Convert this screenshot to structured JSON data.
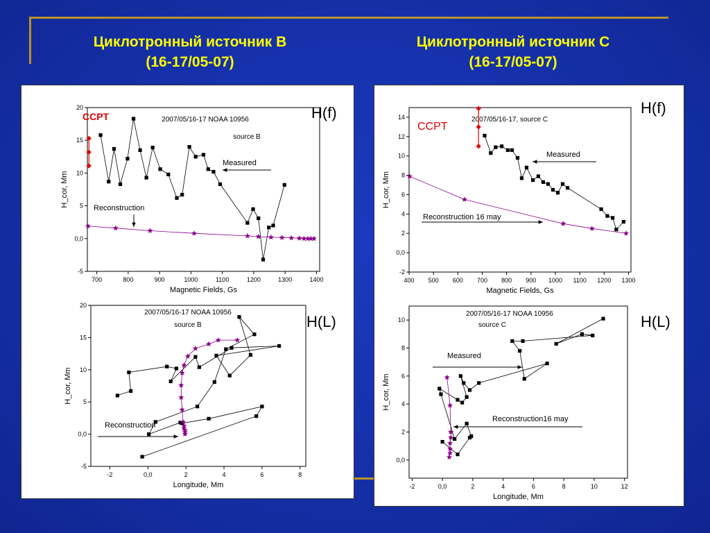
{
  "header": {
    "left_title_line1": "Циклотронный источник В",
    "left_title_line2": "(16-17/05-07)",
    "right_title_line1": "Циклотронный источник С",
    "right_title_line2": "(16-17/05-07)"
  },
  "colors": {
    "background": "#1530a8",
    "title": "#ffff00",
    "accent_line": "#b8922a",
    "measured": "#000000",
    "reconstruction": "#8b008b",
    "ccpt": "#e00000"
  },
  "chart_data": [
    {
      "id": "b_hf",
      "type": "line",
      "side_label": "H(f)",
      "title": "2007/05/16-17 NOAA 10956",
      "subtitle": "source B",
      "corner_label": "CCPT",
      "xlabel": "Magnetic Fields, Gs",
      "ylabel": "H_cor, Mm",
      "xlim": [
        670,
        1410
      ],
      "ylim": [
        -5,
        20
      ],
      "xticks": [
        700,
        800,
        900,
        1000,
        1100,
        1200,
        1300,
        1400
      ],
      "xtick_labels": [
        "700",
        "800",
        "900",
        "1000",
        "1100",
        "1200",
        "1300",
        "1400"
      ],
      "yticks": [
        -5,
        0,
        5,
        10,
        15,
        20
      ],
      "ytick_labels": [
        "-5",
        "0,0",
        "5",
        "10",
        "15",
        "20"
      ],
      "series": [
        {
          "name": "Measured",
          "marker": "square",
          "x": [
            712,
            738,
            755,
            775,
            798,
            817,
            838,
            858,
            878,
            902,
            928,
            955,
            972,
            995,
            1015,
            1040,
            1055,
            1072,
            1093,
            1180,
            1198,
            1215,
            1230,
            1248,
            1262,
            1298
          ],
          "y": [
            15.8,
            8.7,
            13.7,
            8.3,
            12.2,
            18.3,
            13.5,
            9.3,
            13.9,
            10.6,
            9.8,
            6.2,
            6.7,
            14.0,
            12.5,
            12.8,
            10.6,
            10.2,
            8.3,
            2.4,
            4.5,
            3.1,
            -3.2,
            1.7,
            2.0,
            8.2
          ]
        },
        {
          "name": "Reconstruction",
          "marker": "star",
          "x": [
            672,
            760,
            870,
            1010,
            1180,
            1215,
            1255,
            1290,
            1320,
            1345,
            1360,
            1372,
            1382,
            1392
          ],
          "y": [
            1.9,
            1.6,
            1.2,
            0.8,
            0.4,
            0.3,
            0.2,
            0.15,
            0.1,
            0.05,
            0.0,
            0.0,
            0.0,
            0.0
          ]
        },
        {
          "name": "CCPT",
          "marker": "diamond",
          "x": [
            675,
            675,
            675
          ],
          "y": [
            11.1,
            13.2,
            15.3
          ]
        }
      ],
      "annotations": [
        "Measured",
        "Reconstruction"
      ]
    },
    {
      "id": "c_hf",
      "type": "line",
      "side_label": "H(f)",
      "title": "2007/05/16-17, source C",
      "subtitle": "",
      "corner_label": "CCPT",
      "xlabel": "Magnetic Fields, Gs",
      "ylabel": "H_cor, Mm",
      "xlim": [
        400,
        1310
      ],
      "ylim": [
        -2,
        15
      ],
      "xticks": [
        400,
        500,
        600,
        700,
        800,
        900,
        1000,
        1100,
        1200,
        1300
      ],
      "xtick_labels": [
        "400",
        "500",
        "600",
        "700",
        "800",
        "900",
        "1000",
        "1100",
        "1200",
        "1300"
      ],
      "yticks": [
        -2,
        0,
        2,
        4,
        6,
        8,
        10,
        12,
        14
      ],
      "ytick_labels": [
        "-2",
        "0,0",
        "2",
        "4",
        "6",
        "8",
        "10",
        "12",
        "14"
      ],
      "series": [
        {
          "name": "Measured",
          "marker": "square",
          "x": [
            710,
            735,
            755,
            780,
            805,
            822,
            845,
            862,
            882,
            908,
            930,
            950,
            970,
            990,
            1010,
            1030,
            1050,
            1188,
            1213,
            1235,
            1250,
            1280
          ],
          "y": [
            12.1,
            10.3,
            10.9,
            11.0,
            10.6,
            10.6,
            9.8,
            7.7,
            8.8,
            7.5,
            7.9,
            7.3,
            7.1,
            6.5,
            6.2,
            7.1,
            6.7,
            4.5,
            3.8,
            3.6,
            2.4,
            3.2
          ]
        },
        {
          "name": "Reconstruction 16 may",
          "marker": "star",
          "x": [
            402,
            627,
            1032,
            1150,
            1290
          ],
          "y": [
            7.9,
            5.5,
            3.0,
            2.5,
            2.0
          ]
        },
        {
          "name": "CCPT",
          "marker": "diamond",
          "x": [
            685,
            685,
            685
          ],
          "y": [
            11.0,
            13.0,
            14.9
          ]
        }
      ],
      "annotations": [
        "Measured",
        "Reconstruction 16 may"
      ]
    },
    {
      "id": "b_hl",
      "type": "line",
      "side_label": "H(L)",
      "title": "2007/05/16-17 NOAA 10956",
      "subtitle": "source B",
      "xlabel": "Longitude, Mm",
      "ylabel": "H_cor, Mm",
      "xlim": [
        -3,
        8.3
      ],
      "ylim": [
        -5,
        20
      ],
      "xticks": [
        -2,
        0,
        2,
        4,
        6,
        8
      ],
      "xtick_labels": [
        "-2",
        "0,0",
        "2",
        "4",
        "6",
        "8"
      ],
      "yticks": [
        -5,
        0,
        5,
        10,
        15,
        20
      ],
      "ytick_labels": [
        "-5",
        "0,0",
        "5",
        "10",
        "15",
        "20"
      ],
      "series": [
        {
          "name": "Measured",
          "marker": "square",
          "x": [
            -1.6,
            -0.9,
            -1.0,
            1.0,
            1.5,
            1.2,
            2.5,
            2.7,
            4.4,
            6.9,
            3.6,
            4.3,
            5.4,
            4.8,
            5.6,
            4.1,
            3.5,
            2.6,
            0.4,
            0.05,
            1.7,
            1.8,
            3.2,
            6.0,
            5.7,
            -0.3
          ],
          "y": [
            6.0,
            6.7,
            9.6,
            10.5,
            10.2,
            8.2,
            12.0,
            10.4,
            13.4,
            13.7,
            12.2,
            9.1,
            12.3,
            18.2,
            15.5,
            13.2,
            8.1,
            4.3,
            1.9,
            0.0,
            1.8,
            1.7,
            2.4,
            4.3,
            2.8,
            -3.5
          ]
        },
        {
          "name": "Reconstruction",
          "marker": "star",
          "x": [
            4.7,
            3.7,
            3.2,
            2.5,
            2.1,
            1.9,
            1.8,
            1.75,
            1.75,
            1.8,
            1.85,
            1.9,
            1.9,
            1.95,
            1.95,
            1.95
          ],
          "y": [
            14.6,
            14.6,
            14.0,
            13.3,
            12.1,
            10.7,
            9.5,
            7.6,
            5.7,
            3.8,
            1.9,
            1.3,
            0.9,
            0.6,
            0.3,
            0.0
          ]
        }
      ],
      "annotations": [
        "Reconstruction",
        "Measured"
      ]
    },
    {
      "id": "c_hl",
      "type": "line",
      "side_label": "H(L)",
      "title": "2007/05/16-17 NOAA 10956",
      "subtitle": "source C",
      "xlabel": "Longitude, Mm",
      "ylabel": "H_cor, Mm",
      "xlim": [
        -2.2,
        12.2
      ],
      "ylim": [
        -1.3,
        11
      ],
      "xticks": [
        -2,
        0,
        2,
        4,
        6,
        8,
        10,
        12
      ],
      "xtick_labels": [
        "-2",
        "0,0",
        "2",
        "4",
        "6",
        "8",
        "10",
        "12"
      ],
      "yticks": [
        0,
        2,
        4,
        6,
        8,
        10
      ],
      "ytick_labels": [
        "0,0",
        "2",
        "4",
        "6",
        "8",
        "10"
      ],
      "series": [
        {
          "name": "Measured",
          "marker": "square",
          "x": [
            10.6,
            7.5,
            9.2,
            9.9,
            5.3,
            4.6,
            5.1,
            5.4,
            6.9,
            2.4,
            1.8,
            1.4,
            1.2,
            1.6,
            1.3,
            1.0,
            -0.2,
            -0.1,
            0.8,
            1.6,
            1.9,
            1.8,
            1.0,
            0.0
          ],
          "y": [
            10.1,
            8.3,
            9.0,
            8.9,
            8.5,
            8.5,
            7.8,
            5.8,
            6.9,
            5.5,
            5.0,
            5.5,
            6.0,
            4.5,
            4.1,
            4.3,
            5.1,
            4.7,
            1.5,
            2.6,
            1.7,
            1.6,
            0.4,
            1.3
          ]
        },
        {
          "name": "Reconstruction16 may",
          "marker": "star",
          "x": [
            0.3,
            0.5,
            0.55,
            0.55,
            0.5,
            0.5,
            0.5,
            0.45
          ],
          "y": [
            5.9,
            3.9,
            2.0,
            1.6,
            1.2,
            0.8,
            0.5,
            0.2
          ]
        }
      ],
      "annotations": [
        "Measured",
        "Reconstruction16 may"
      ]
    }
  ]
}
